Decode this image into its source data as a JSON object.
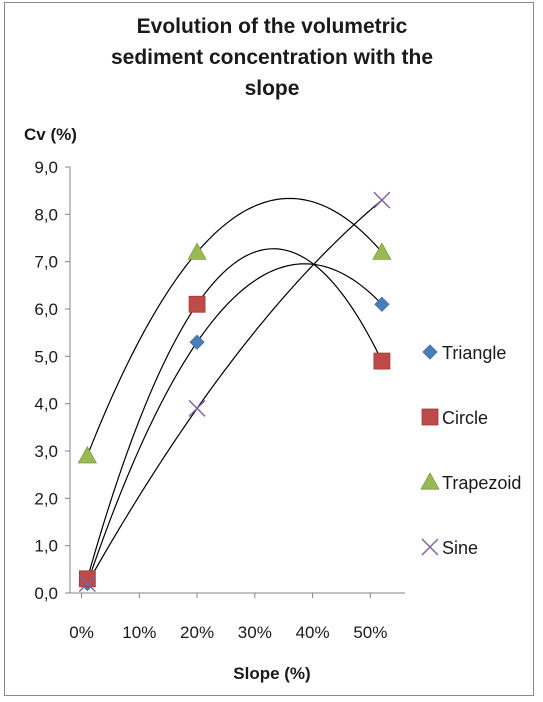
{
  "chart_data": {
    "type": "scatter",
    "title_lines": [
      "Evolution of the volumetric",
      "sediment concentration with the",
      "slope"
    ],
    "xlabel": "Slope (%)",
    "ylabel": "Cv (%)",
    "xlim": [
      -0.02,
      0.56
    ],
    "ylim": [
      0,
      9
    ],
    "x_ticks": [
      0,
      0.1,
      0.2,
      0.3,
      0.4,
      0.5
    ],
    "x_tick_labels": [
      "0%",
      "10%",
      "20%",
      "30%",
      "40%",
      "50%"
    ],
    "y_ticks": [
      0,
      1,
      2,
      3,
      4,
      5,
      6,
      7,
      8,
      9
    ],
    "y_tick_labels": [
      "0,0",
      "1,0",
      "2,0",
      "3,0",
      "4,0",
      "5,0",
      "6,0",
      "7,0",
      "8,0",
      "9,0"
    ],
    "grid": false,
    "legend_position": "right",
    "trendlines": "polynomial (order 2), black",
    "series": [
      {
        "name": "Triangle",
        "marker": "diamond",
        "color": "#4a7ebb",
        "x": [
          0.01,
          0.2,
          0.52
        ],
        "y": [
          0.2,
          5.3,
          6.1
        ]
      },
      {
        "name": "Circle",
        "marker": "square",
        "color": "#be4b48",
        "x": [
          0.01,
          0.2,
          0.52
        ],
        "y": [
          0.3,
          6.1,
          4.9
        ]
      },
      {
        "name": "Trapezoid",
        "marker": "triangle",
        "color": "#98b954",
        "x": [
          0.01,
          0.2,
          0.52
        ],
        "y": [
          2.9,
          7.2,
          7.2
        ]
      },
      {
        "name": "Sine",
        "marker": "x",
        "color": "#7d60a0",
        "x": [
          0.01,
          0.2,
          0.52
        ],
        "y": [
          0.2,
          3.9,
          8.3
        ]
      }
    ]
  }
}
